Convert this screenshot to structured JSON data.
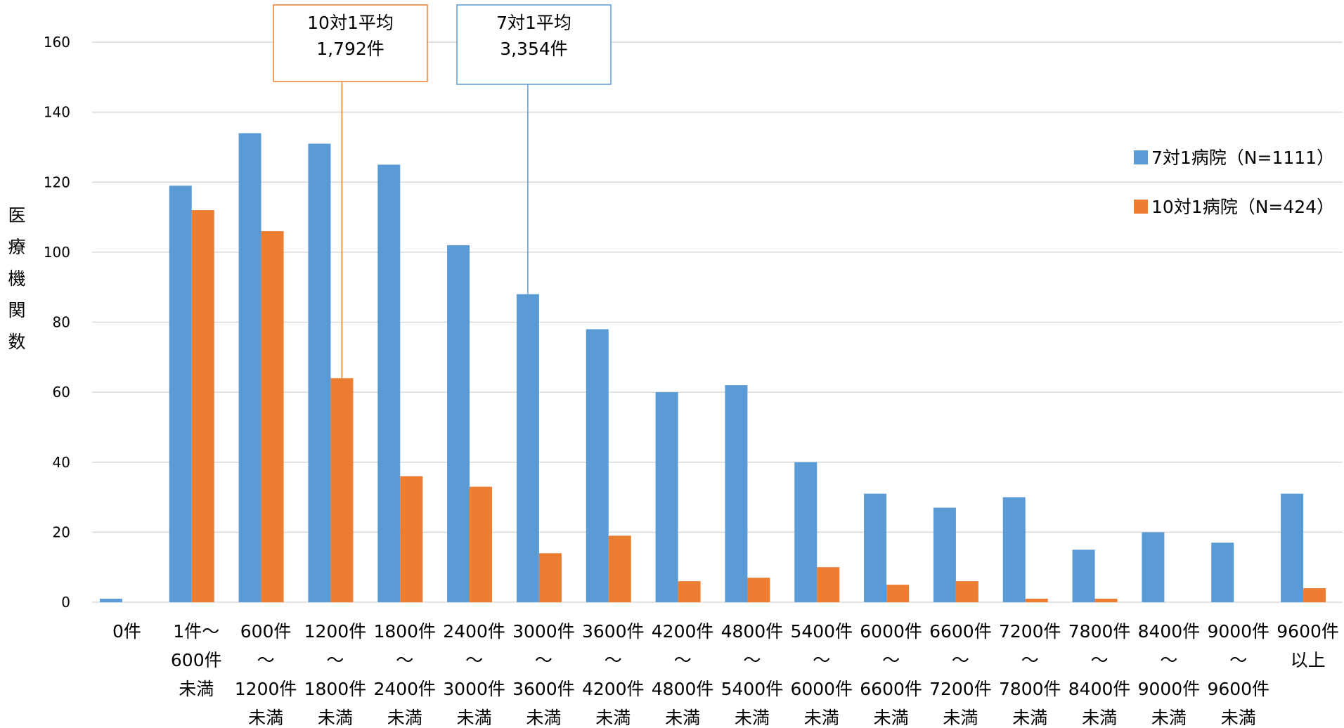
{
  "chart_data": {
    "type": "bar",
    "categories": [
      [
        "0件"
      ],
      [
        "1件～",
        "600件",
        "未満"
      ],
      [
        "600件",
        "～",
        "1200件",
        "未満"
      ],
      [
        "1200件",
        "～",
        "1800件",
        "未満"
      ],
      [
        "1800件",
        "～",
        "2400件",
        "未満"
      ],
      [
        "2400件",
        "～",
        "3000件",
        "未満"
      ],
      [
        "3000件",
        "～",
        "3600件",
        "未満"
      ],
      [
        "3600件",
        "～",
        "4200件",
        "未満"
      ],
      [
        "4200件",
        "～",
        "4800件",
        "未満"
      ],
      [
        "4800件",
        "～",
        "5400件",
        "未満"
      ],
      [
        "5400件",
        "～",
        "6000件",
        "未満"
      ],
      [
        "6000件",
        "～",
        "6600件",
        "未満"
      ],
      [
        "6600件",
        "～",
        "7200件",
        "未満"
      ],
      [
        "7200件",
        "～",
        "7800件",
        "未満"
      ],
      [
        "7800件",
        "～",
        "8400件",
        "未満"
      ],
      [
        "8400件",
        "～",
        "9000件",
        "未満"
      ],
      [
        "9000件",
        "～",
        "9600件",
        "未満"
      ],
      [
        "9600件",
        "以上"
      ]
    ],
    "series": [
      {
        "name": "7対1病院（N=1111）",
        "color": "#5b9bd5",
        "values": [
          1,
          119,
          134,
          131,
          125,
          102,
          88,
          78,
          60,
          62,
          40,
          31,
          27,
          30,
          15,
          20,
          17,
          31
        ]
      },
      {
        "name": "10対1病院（N=424）",
        "color": "#ed7d31",
        "values": [
          0,
          112,
          106,
          64,
          36,
          33,
          14,
          19,
          6,
          7,
          10,
          5,
          6,
          1,
          1,
          0,
          0,
          4
        ]
      }
    ],
    "ylabel": "医療機関数",
    "ylim": [
      0,
      160
    ],
    "yticks": [
      0,
      20,
      40,
      60,
      80,
      100,
      120,
      140,
      160
    ],
    "grid": true,
    "legend_position": "right",
    "annotations": [
      {
        "lines": [
          "10対1平均",
          "1,792件"
        ],
        "series_index": 1,
        "category_index": 3,
        "color": "#ed7d31"
      },
      {
        "lines": [
          "7対1平均",
          "3,354件"
        ],
        "series_index": 0,
        "category_index": 6,
        "color": "#5b9bd5"
      }
    ]
  }
}
